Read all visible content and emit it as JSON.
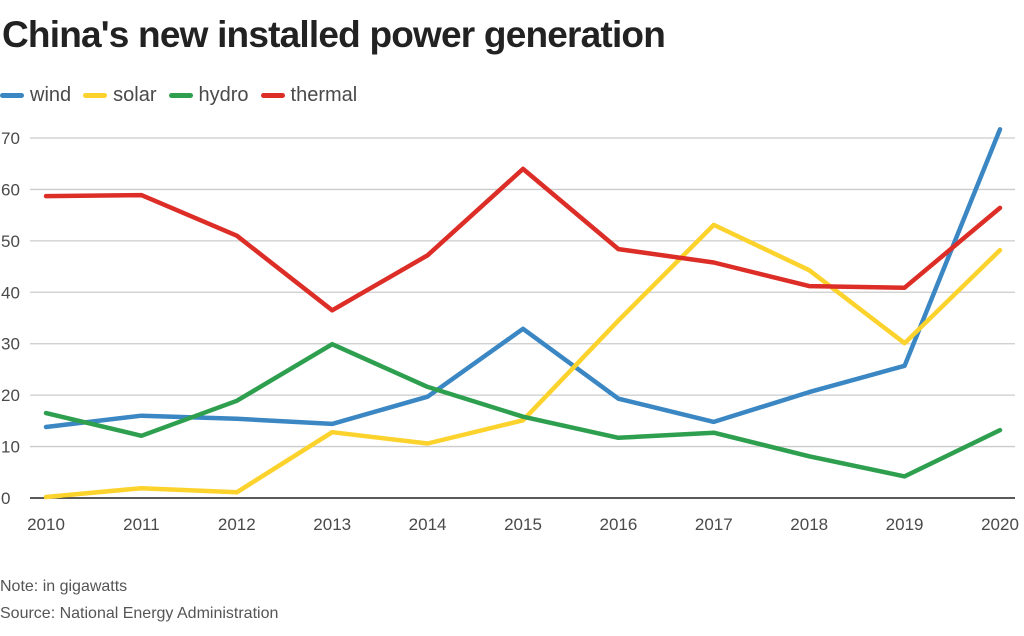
{
  "chart_data": {
    "type": "line",
    "title": "China's new installed power generation",
    "xlabel": "",
    "ylabel": "",
    "x": [
      "2010",
      "2011",
      "2012",
      "2013",
      "2014",
      "2015",
      "2016",
      "2017",
      "2018",
      "2019",
      "2020"
    ],
    "ylim": [
      0,
      70
    ],
    "yticks": [
      0,
      10,
      20,
      30,
      40,
      50,
      60,
      70
    ],
    "grid": true,
    "legend_position": "top-left",
    "series": [
      {
        "name": "wind",
        "color": "#3a87c4",
        "values": [
          13.8,
          16.0,
          15.4,
          14.4,
          19.7,
          32.9,
          19.3,
          14.8,
          20.6,
          25.7,
          71.7
        ]
      },
      {
        "name": "solar",
        "color": "#fcd22c",
        "values": [
          0.2,
          1.9,
          1.1,
          12.8,
          10.6,
          15.1,
          34.5,
          53.1,
          44.3,
          30.1,
          48.2
        ]
      },
      {
        "name": "hydro",
        "color": "#2e9f4e",
        "values": [
          16.5,
          12.1,
          18.9,
          29.9,
          21.6,
          15.8,
          11.7,
          12.7,
          8.1,
          4.2,
          13.2
        ]
      },
      {
        "name": "thermal",
        "color": "#dd2d27",
        "values": [
          58.7,
          58.9,
          51.0,
          36.5,
          47.2,
          64.0,
          48.4,
          45.8,
          41.2,
          40.9,
          56.4
        ]
      }
    ]
  },
  "notes": {
    "note": "Note: in gigawatts",
    "source": "Source: National Energy Administration"
  },
  "colors": {
    "grid": "#cccccc",
    "axis": "#222222"
  }
}
